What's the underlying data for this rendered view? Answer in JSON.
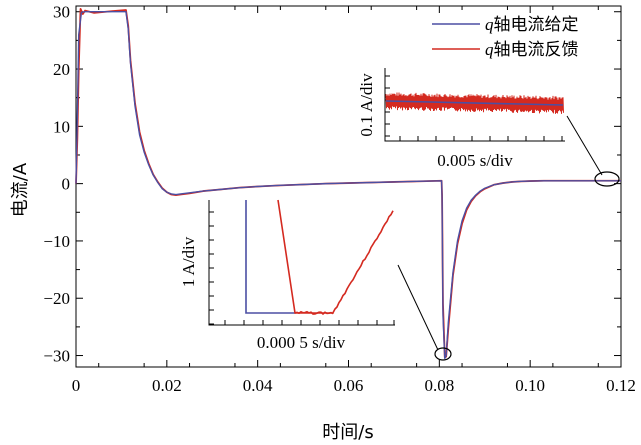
{
  "chart_data": {
    "type": "line",
    "xlabel": "时间/s",
    "ylabel": "电流/A",
    "xlim": [
      0,
      0.12
    ],
    "ylim": [
      -32,
      31
    ],
    "x_ticks": [
      0,
      0.02,
      0.04,
      0.06,
      0.08,
      0.1,
      0.12
    ],
    "x_tick_labels": [
      "0",
      "0.02",
      "0.04",
      "0.06",
      "0.08",
      "0.10",
      "0.12"
    ],
    "y_ticks": [
      30,
      20,
      10,
      0,
      -10,
      -20,
      -30
    ],
    "y_tick_labels": [
      "30",
      "20",
      "10",
      "0",
      "−10",
      "−20",
      "−30"
    ],
    "grid": false,
    "legend_position": "top-right",
    "colors": {
      "reference": "#4b4fa3",
      "feedback": "#d42a20"
    },
    "series": [
      {
        "name_prefix": "q",
        "name": "轴电流给定",
        "x": [
          0,
          0.0003,
          0.0006,
          0.0012,
          0.002,
          0.004,
          0.008,
          0.011,
          0.0115,
          0.012,
          0.013,
          0.014,
          0.015,
          0.016,
          0.017,
          0.018,
          0.019,
          0.02,
          0.021,
          0.022,
          0.023,
          0.025,
          0.028,
          0.032,
          0.036,
          0.04,
          0.045,
          0.05,
          0.055,
          0.06,
          0.065,
          0.07,
          0.075,
          0.0805,
          0.0806,
          0.0808,
          0.0812,
          0.0815,
          0.082,
          0.083,
          0.084,
          0.085,
          0.086,
          0.087,
          0.088,
          0.089,
          0.09,
          0.092,
          0.094,
          0.096,
          0.098,
          0.1,
          0.103,
          0.106,
          0.11,
          0.114,
          0.118,
          0.12
        ],
        "y": [
          0,
          12,
          26,
          29.9,
          30,
          30,
          30,
          30,
          27,
          21,
          13.5,
          8.5,
          5.5,
          3.3,
          1.5,
          0.2,
          -0.9,
          -1.5,
          -1.8,
          -1.9,
          -1.8,
          -1.6,
          -1.3,
          -1.0,
          -0.7,
          -0.5,
          -0.3,
          -0.15,
          0,
          0.1,
          0.2,
          0.3,
          0.4,
          0.5,
          -2.5,
          -23,
          -30.5,
          -30,
          -24,
          -15.5,
          -10,
          -6.5,
          -4.3,
          -2.9,
          -2.0,
          -1.3,
          -0.8,
          -0.2,
          0.1,
          0.3,
          0.4,
          0.45,
          0.5,
          0.5,
          0.5,
          0.5,
          0.5,
          0.5
        ]
      },
      {
        "name_prefix": "q",
        "name": "轴电流反馈",
        "x": [
          0,
          0.0003,
          0.0006,
          0.001,
          0.0015,
          0.002,
          0.004,
          0.008,
          0.011,
          0.0115,
          0.012,
          0.013,
          0.014,
          0.015,
          0.016,
          0.017,
          0.018,
          0.019,
          0.02,
          0.021,
          0.022,
          0.023,
          0.025,
          0.028,
          0.032,
          0.036,
          0.04,
          0.045,
          0.05,
          0.055,
          0.06,
          0.065,
          0.07,
          0.075,
          0.0805,
          0.0806,
          0.0808,
          0.0812,
          0.0815,
          0.082,
          0.083,
          0.084,
          0.085,
          0.086,
          0.087,
          0.088,
          0.089,
          0.09,
          0.092,
          0.094,
          0.096,
          0.098,
          0.1,
          0.103,
          0.106,
          0.11,
          0.114,
          0.118,
          0.12
        ],
        "y": [
          0,
          8,
          20,
          30.5,
          29.6,
          30.2,
          29.8,
          30.1,
          30.3,
          27.5,
          21.5,
          14,
          9,
          5.8,
          3.5,
          1.6,
          0.3,
          -0.8,
          -1.5,
          -1.9,
          -2.0,
          -1.9,
          -1.7,
          -1.3,
          -1.0,
          -0.7,
          -0.5,
          -0.3,
          -0.15,
          0,
          0.1,
          0.2,
          0.3,
          0.4,
          0.5,
          -2,
          -21,
          -30.3,
          -30.2,
          -25,
          -16,
          -10.5,
          -7,
          -4.6,
          -3.1,
          -2.1,
          -1.4,
          -0.9,
          -0.2,
          0.1,
          0.3,
          0.4,
          0.45,
          0.5,
          0.5,
          0.5,
          0.5,
          0.5,
          0.5
        ]
      }
    ],
    "insets": [
      {
        "ylabel": "0.1 A/div",
        "xlabel": "0.005 s/div",
        "zoom_target": {
          "x": 0.1178,
          "y": 0.4
        }
      },
      {
        "ylabel": "1 A/div",
        "xlabel": "0.000 5 s/div",
        "zoom_target": {
          "x": 0.0814,
          "y": -30.5
        }
      }
    ]
  }
}
